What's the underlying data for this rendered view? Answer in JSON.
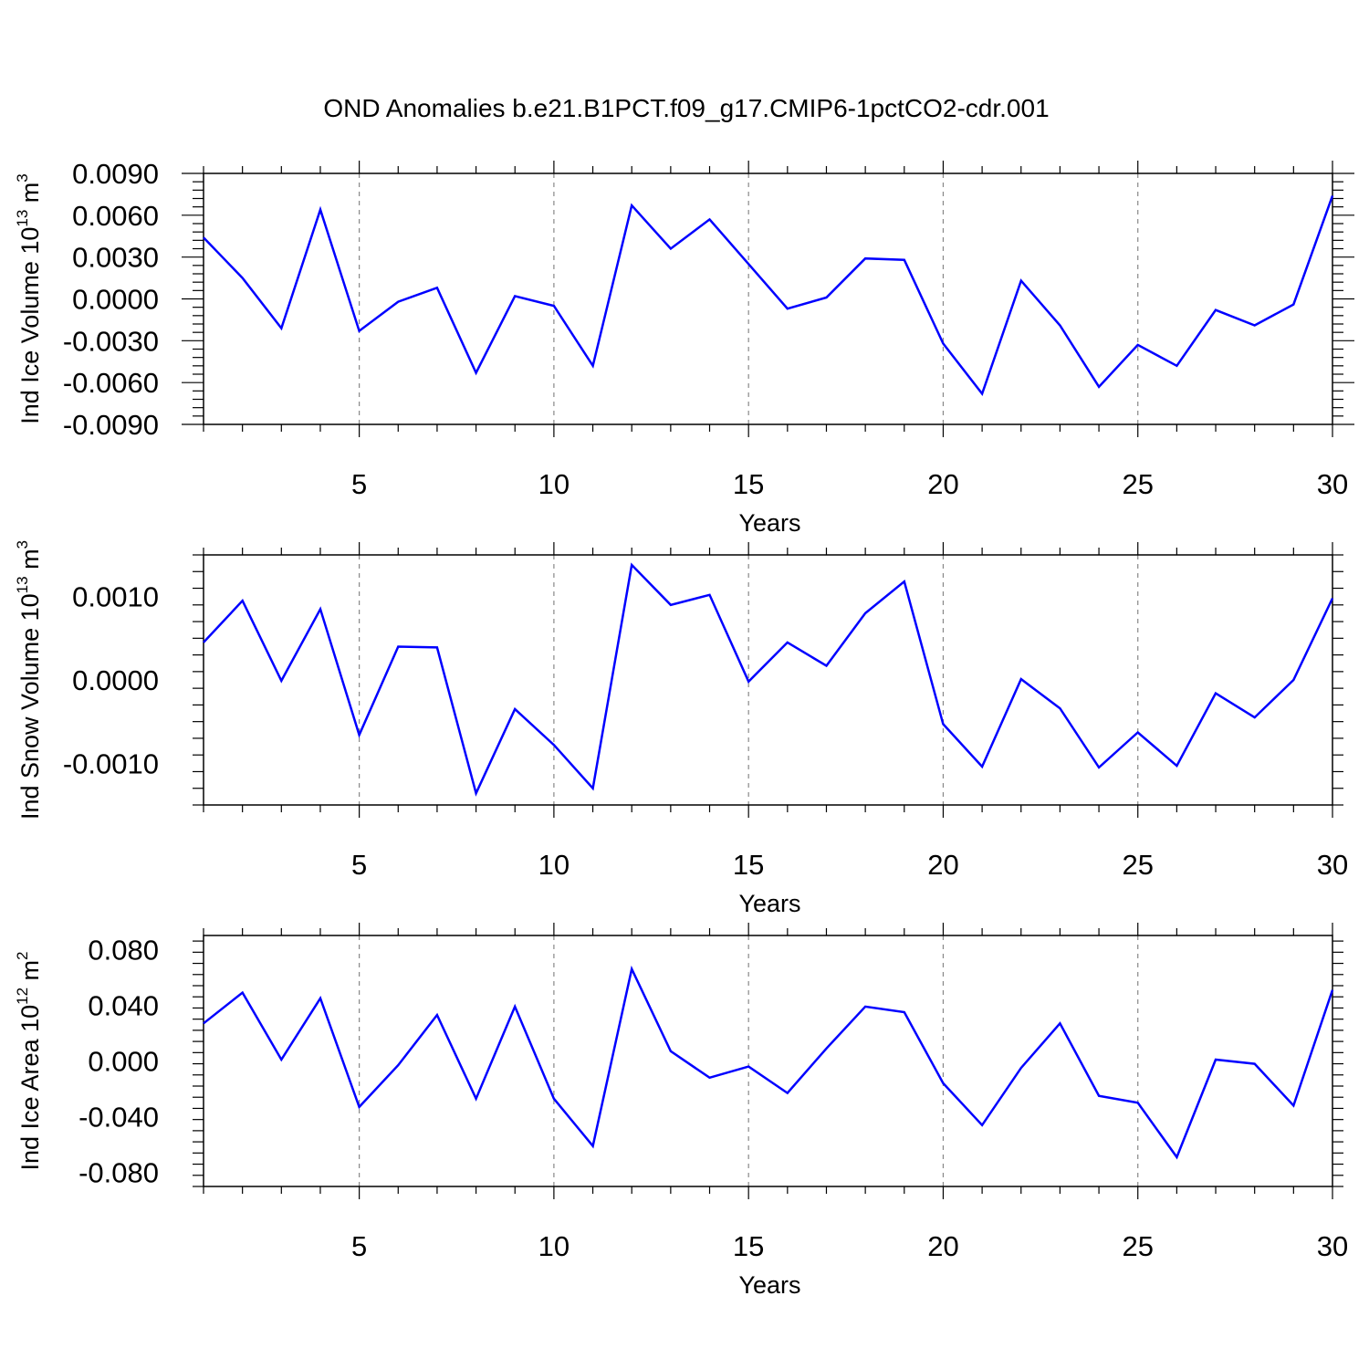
{
  "title": "OND Anomalies b.e21.B1PCT.f09_g17.CMIP6-1pctCO2-cdr.001",
  "chart_data": [
    {
      "type": "line",
      "title": "",
      "xlabel": "Years",
      "ylabel": "Ind Ice Volume 10",
      "ylabel_exp": "13",
      "ylabel_unit": " m",
      "ylabel_unit_exp": "3",
      "xlim": [
        1,
        30
      ],
      "ylim": [
        -0.009,
        0.009
      ],
      "xticks": [
        5,
        10,
        15,
        20,
        25,
        30
      ],
      "yticks": [
        0.009,
        0.006,
        0.003,
        0.0,
        -0.003,
        -0.006,
        -0.009
      ],
      "ytick_labels": [
        "0.0090",
        "0.0060",
        "0.0030",
        "0.0000",
        "-0.0030",
        "-0.0060",
        "-0.0090"
      ],
      "grid": "vertical dashed at x ticks",
      "color": "#0000ff",
      "x": [
        1,
        2,
        3,
        4,
        5,
        6,
        7,
        8,
        9,
        10,
        11,
        12,
        13,
        14,
        15,
        16,
        17,
        18,
        19,
        20,
        21,
        22,
        23,
        24,
        25,
        26,
        27,
        28,
        29,
        30
      ],
      "values": [
        0.0044,
        0.0015,
        -0.0021,
        0.0064,
        -0.0023,
        -0.0002,
        0.0008,
        -0.0053,
        0.0002,
        -0.0005,
        -0.0048,
        0.0067,
        0.0036,
        0.0057,
        0.0025,
        -0.0007,
        0.0001,
        0.0029,
        0.0028,
        -0.0032,
        -0.0068,
        0.0013,
        -0.0019,
        -0.0063,
        -0.0033,
        -0.0048,
        -0.0008,
        -0.0019,
        -0.0004,
        0.0074
      ]
    },
    {
      "type": "line",
      "title": "",
      "xlabel": "Years",
      "ylabel": "Ind Snow Volume 10",
      "ylabel_exp": "13",
      "ylabel_unit": " m",
      "ylabel_unit_exp": "3",
      "xlim": [
        1,
        30
      ],
      "ylim": [
        -0.0015,
        0.0015
      ],
      "xticks": [
        5,
        10,
        15,
        20,
        25,
        30
      ],
      "yticks": [
        0.001,
        0.0,
        -0.001
      ],
      "ytick_labels": [
        "0.0010",
        "0.0000",
        "-0.0010"
      ],
      "grid": "vertical dashed at x ticks",
      "color": "#0000ff",
      "x": [
        1,
        2,
        3,
        4,
        5,
        6,
        7,
        8,
        9,
        10,
        11,
        12,
        13,
        14,
        15,
        16,
        17,
        18,
        19,
        20,
        21,
        22,
        23,
        24,
        25,
        26,
        27,
        28,
        29,
        30
      ],
      "values": [
        0.00045,
        0.00095,
        -1e-05,
        0.00085,
        -0.00066,
        0.0004,
        0.00039,
        -0.00136,
        -0.00035,
        -0.00078,
        -0.0013,
        0.00138,
        0.0009,
        0.00102,
        -2e-05,
        0.00045,
        0.00017,
        0.0008,
        0.00118,
        -0.00053,
        -0.00104,
        1e-05,
        -0.00034,
        -0.00105,
        -0.00063,
        -0.00103,
        -0.00016,
        -0.00045,
        0.0,
        0.00098
      ]
    },
    {
      "type": "line",
      "title": "",
      "xlabel": "Years",
      "ylabel": "Ind Ice Area 10",
      "ylabel_exp": "12",
      "ylabel_unit": " m",
      "ylabel_unit_exp": "2",
      "xlim": [
        1,
        30
      ],
      "ylim": [
        -0.09,
        0.09
      ],
      "xticks": [
        5,
        10,
        15,
        20,
        25,
        30
      ],
      "yticks": [
        0.08,
        0.04,
        0.0,
        -0.04,
        -0.08
      ],
      "ytick_labels": [
        "0.080",
        "0.040",
        "0.000",
        "-0.040",
        "-0.080"
      ],
      "grid": "vertical dashed at x ticks",
      "color": "#0000ff",
      "x": [
        1,
        2,
        3,
        4,
        5,
        6,
        7,
        8,
        9,
        10,
        11,
        12,
        13,
        14,
        15,
        16,
        17,
        18,
        19,
        20,
        21,
        22,
        23,
        24,
        25,
        26,
        27,
        28,
        29,
        30
      ],
      "values": [
        0.027,
        0.049,
        0.001,
        0.045,
        -0.033,
        -0.003,
        0.033,
        -0.027,
        0.039,
        -0.027,
        -0.061,
        0.066,
        0.007,
        -0.012,
        -0.004,
        -0.023,
        0.009,
        0.039,
        0.035,
        -0.016,
        -0.046,
        -0.005,
        0.027,
        -0.025,
        -0.03,
        -0.069,
        0.001,
        -0.002,
        -0.032,
        0.051
      ]
    }
  ]
}
